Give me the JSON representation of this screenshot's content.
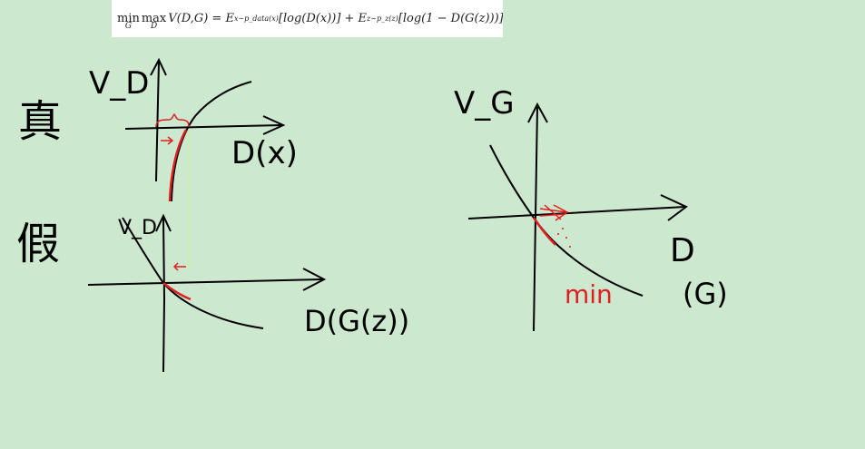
{
  "formula": {
    "min_op": "min",
    "min_sub": "G",
    "max_op": "max",
    "max_sub": "D",
    "lhs": "V(D,G) = E",
    "sub1": "x∼p_data(x)",
    "mid": "[log(D(x))] + E",
    "sub2": "z∼p_z(z)",
    "rhs": "[log(1 − D(G(z)))]"
  },
  "annotations": {
    "real_char": "真",
    "fake_char": "假",
    "vd_top": "V_D",
    "dx_label": "D(x)",
    "vd_bottom": "V_D",
    "dgz_label": "D(G(z))",
    "vg_label": "V_G",
    "dg_label_d": "D",
    "dg_label_g": "(G)",
    "min_label": "min"
  },
  "colors": {
    "background": "#cce8cf",
    "ink": "#000000",
    "red_ink": "#e02020",
    "guide": "#c8f0a8"
  }
}
